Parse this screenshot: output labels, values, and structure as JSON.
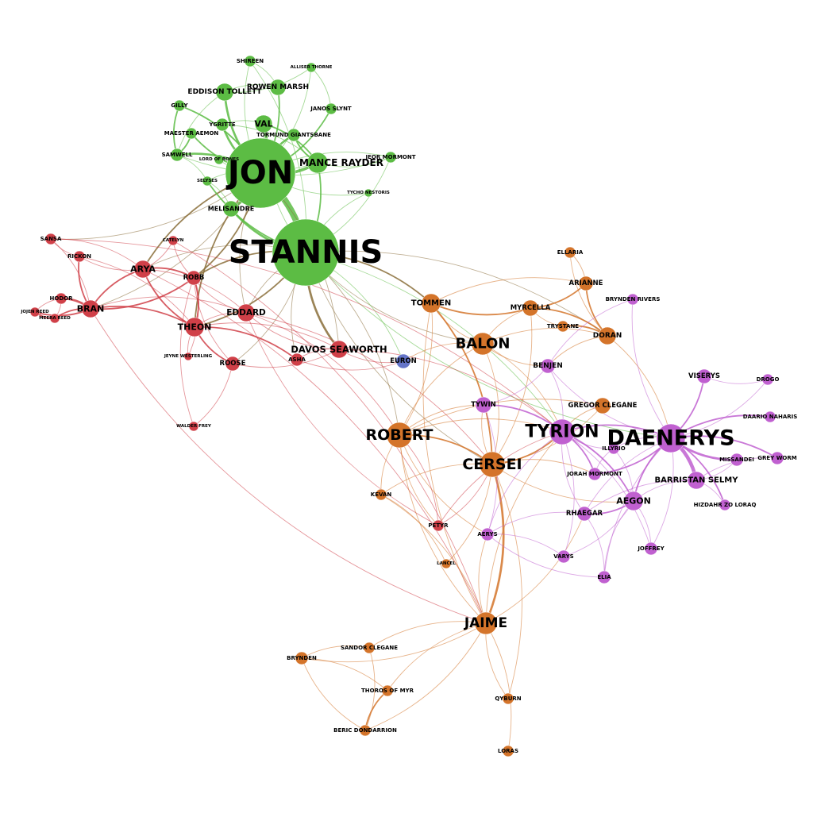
{
  "colors": {
    "north": "#d04048",
    "wall": "#5cbc44",
    "south": "#d4742a",
    "east": "#c060d0",
    "iron": "#6474c8",
    "mixed": "#8a6e3a"
  },
  "nodes": [
    {
      "id": "jon",
      "label": "JON",
      "group": "wall",
      "size": 44
    },
    {
      "id": "stannis",
      "label": "STANNIS",
      "group": "wall",
      "size": 42
    },
    {
      "id": "shireen",
      "label": "SHIREEN",
      "group": "wall",
      "size": 7
    },
    {
      "id": "alliser",
      "label": "ALLISER THORNE",
      "group": "wall",
      "size": 6
    },
    {
      "id": "rowen",
      "label": "ROWEN MARSH",
      "group": "wall",
      "size": 10
    },
    {
      "id": "eddison",
      "label": "EDDISON TOLLETT",
      "group": "wall",
      "size": 11
    },
    {
      "id": "gilly",
      "label": "GILLY",
      "group": "wall",
      "size": 7
    },
    {
      "id": "janos",
      "label": "JANOS SLYNT",
      "group": "wall",
      "size": 7
    },
    {
      "id": "ygritte",
      "label": "YGRITTE",
      "group": "wall",
      "size": 8
    },
    {
      "id": "val",
      "label": "VAL",
      "group": "wall",
      "size": 11
    },
    {
      "id": "aemon",
      "label": "MAESTER AEMON",
      "group": "wall",
      "size": 7
    },
    {
      "id": "tormund",
      "label": "TORMUND GIANTSBANE",
      "group": "wall",
      "size": 8
    },
    {
      "id": "samwell",
      "label": "SAMWELL",
      "group": "wall",
      "size": 8
    },
    {
      "id": "lordbones",
      "label": "LORD OF BONES",
      "group": "wall",
      "size": 6
    },
    {
      "id": "mance",
      "label": "MANCE RAYDER",
      "group": "wall",
      "size": 13
    },
    {
      "id": "jeor",
      "label": "JEOR MORMONT",
      "group": "wall",
      "size": 7
    },
    {
      "id": "selyses",
      "label": "SELYSES",
      "group": "wall",
      "size": 6
    },
    {
      "id": "tycho",
      "label": "TYCHO NESTORIS",
      "group": "wall",
      "size": 5
    },
    {
      "id": "melisandre",
      "label": "MELISANDRE",
      "group": "wall",
      "size": 10
    },
    {
      "id": "sansa",
      "label": "SANSA",
      "group": "north",
      "size": 7
    },
    {
      "id": "catelyn",
      "label": "CATELYN",
      "group": "north",
      "size": 6
    },
    {
      "id": "rickon",
      "label": "RICKON",
      "group": "north",
      "size": 7
    },
    {
      "id": "arya",
      "label": "ARYA",
      "group": "north",
      "size": 11
    },
    {
      "id": "robb",
      "label": "ROBB",
      "group": "north",
      "size": 9
    },
    {
      "id": "hodor",
      "label": "HODOR",
      "group": "north",
      "size": 7
    },
    {
      "id": "bran",
      "label": "BRAN",
      "group": "north",
      "size": 11
    },
    {
      "id": "jojen",
      "label": "JOJEN REED",
      "group": "north",
      "size": 6
    },
    {
      "id": "meera",
      "label": "MEERA REED",
      "group": "north",
      "size": 6
    },
    {
      "id": "eddard",
      "label": "EDDARD",
      "group": "north",
      "size": 11
    },
    {
      "id": "theon",
      "label": "THEON",
      "group": "north",
      "size": 12
    },
    {
      "id": "jeyne",
      "label": "JEYNE WESTERLING",
      "group": "north",
      "size": 5
    },
    {
      "id": "roose",
      "label": "ROOSE",
      "group": "north",
      "size": 9
    },
    {
      "id": "asha",
      "label": "ASHA",
      "group": "north",
      "size": 8
    },
    {
      "id": "davos",
      "label": "DAVOS SEAWORTH",
      "group": "north",
      "size": 11
    },
    {
      "id": "walder",
      "label": "WALDER FREY",
      "group": "north",
      "size": 6
    },
    {
      "id": "petyr",
      "label": "PETYR",
      "group": "north",
      "size": 7
    },
    {
      "id": "euron",
      "label": "EURON",
      "group": "iron",
      "size": 9
    },
    {
      "id": "ellaria",
      "label": "ELLARIA",
      "group": "south",
      "size": 7
    },
    {
      "id": "arianne",
      "label": "ARIANNE",
      "group": "south",
      "size": 9
    },
    {
      "id": "tommen",
      "label": "TOMMEN",
      "group": "south",
      "size": 12
    },
    {
      "id": "myrcella",
      "label": "MYRCELLA",
      "group": "south",
      "size": 10
    },
    {
      "id": "trystane",
      "label": "TRYSTANE",
      "group": "south",
      "size": 7
    },
    {
      "id": "doran",
      "label": "DORAN",
      "group": "south",
      "size": 11
    },
    {
      "id": "balon",
      "label": "BALON",
      "group": "south",
      "size": 14
    },
    {
      "id": "robert",
      "label": "ROBERT",
      "group": "south",
      "size": 16
    },
    {
      "id": "cersei",
      "label": "CERSEI",
      "group": "south",
      "size": 16
    },
    {
      "id": "gregor",
      "label": "GREGOR CLEGANE",
      "group": "south",
      "size": 10
    },
    {
      "id": "kevan",
      "label": "KEVAN",
      "group": "south",
      "size": 7
    },
    {
      "id": "lancel",
      "label": "LANCEL",
      "group": "south",
      "size": 6
    },
    {
      "id": "jaime",
      "label": "JAIME",
      "group": "south",
      "size": 14
    },
    {
      "id": "sandor",
      "label": "SANDOR CLEGANE",
      "group": "south",
      "size": 7
    },
    {
      "id": "brynden",
      "label": "BRYNDEN",
      "group": "south",
      "size": 8
    },
    {
      "id": "thoros",
      "label": "THOROS OF MYR",
      "group": "south",
      "size": 7
    },
    {
      "id": "beric",
      "label": "BERIC DONDARRION",
      "group": "south",
      "size": 7
    },
    {
      "id": "qyburn",
      "label": "QYBURN",
      "group": "south",
      "size": 7
    },
    {
      "id": "loras",
      "label": "LORAS",
      "group": "south",
      "size": 7
    },
    {
      "id": "tyrion",
      "label": "TYRION",
      "group": "east",
      "size": 16
    },
    {
      "id": "daenerys",
      "label": "DAENERYS",
      "group": "east",
      "size": 18
    },
    {
      "id": "brynden_rivers",
      "label": "BRYNDEN RIVERS",
      "group": "east",
      "size": 7
    },
    {
      "id": "benjen",
      "label": "BENJEN",
      "group": "east",
      "size": 9
    },
    {
      "id": "tywin",
      "label": "TYWIN",
      "group": "east",
      "size": 10
    },
    {
      "id": "viserys",
      "label": "VISERYS",
      "group": "east",
      "size": 9
    },
    {
      "id": "drogo",
      "label": "DROGO",
      "group": "east",
      "size": 7
    },
    {
      "id": "daario",
      "label": "DAARIO NAHARIS",
      "group": "east",
      "size": 7
    },
    {
      "id": "greyworm",
      "label": "GREY WORM",
      "group": "east",
      "size": 8
    },
    {
      "id": "missandei",
      "label": "MISSANDEI",
      "group": "east",
      "size": 8
    },
    {
      "id": "illyrio",
      "label": "ILLYRIO",
      "group": "east",
      "size": 7
    },
    {
      "id": "jorah",
      "label": "JORAH MORMONT",
      "group": "east",
      "size": 8
    },
    {
      "id": "barristan",
      "label": "BARRISTAN SELMY",
      "group": "east",
      "size": 11
    },
    {
      "id": "aegon",
      "label": "AEGON",
      "group": "east",
      "size": 12
    },
    {
      "id": "hizdahr",
      "label": "HIZDAHR ZO LORAQ",
      "group": "east",
      "size": 7
    },
    {
      "id": "rhaegar",
      "label": "RHAEGAR",
      "group": "east",
      "size": 9
    },
    {
      "id": "aerys",
      "label": "AERYS",
      "group": "east",
      "size": 8
    },
    {
      "id": "varys",
      "label": "VARYS",
      "group": "east",
      "size": 8
    },
    {
      "id": "joffrey",
      "label": "JOFFREY",
      "group": "east",
      "size": 8
    },
    {
      "id": "elia",
      "label": "ELIA",
      "group": "east",
      "size": 8
    }
  ],
  "edges": [
    [
      "jon",
      "stannis",
      9
    ],
    [
      "jon",
      "mance",
      4
    ],
    [
      "jon",
      "melisandre",
      4
    ],
    [
      "jon",
      "val",
      4
    ],
    [
      "jon",
      "eddison",
      3
    ],
    [
      "jon",
      "samwell",
      3
    ],
    [
      "jon",
      "ygritte",
      3
    ],
    [
      "jon",
      "rowen",
      2
    ],
    [
      "jon",
      "tormund",
      3
    ],
    [
      "jon",
      "gilly",
      2
    ],
    [
      "jon",
      "aemon",
      2
    ],
    [
      "jon",
      "janos",
      2
    ],
    [
      "jon",
      "shireen",
      1
    ],
    [
      "jon",
      "alliser",
      1
    ],
    [
      "jon",
      "jeor",
      1
    ],
    [
      "jon",
      "selyses",
      1
    ],
    [
      "jon",
      "lordbones",
      1
    ],
    [
      "jon",
      "arya",
      2
    ],
    [
      "jon",
      "robb",
      2
    ],
    [
      "jon",
      "theon",
      2
    ],
    [
      "jon",
      "bran",
      1
    ],
    [
      "jon",
      "eddard",
      1
    ],
    [
      "jon",
      "davos",
      1
    ],
    [
      "jon",
      "tycho",
      1
    ],
    [
      "jon",
      "sansa",
      1
    ],
    [
      "stannis",
      "davos",
      3
    ],
    [
      "stannis",
      "melisandre",
      3
    ],
    [
      "stannis",
      "mance",
      2
    ],
    [
      "stannis",
      "selyses",
      2
    ],
    [
      "stannis",
      "shireen",
      1
    ],
    [
      "stannis",
      "val",
      1
    ],
    [
      "stannis",
      "robb",
      2
    ],
    [
      "stannis",
      "theon",
      2
    ],
    [
      "stannis",
      "eddard",
      1
    ],
    [
      "stannis",
      "tommen",
      2
    ],
    [
      "stannis",
      "balon",
      1
    ],
    [
      "stannis",
      "robert",
      1
    ],
    [
      "stannis",
      "cersei",
      1
    ],
    [
      "stannis",
      "tycho",
      1
    ],
    [
      "stannis",
      "asha",
      1
    ],
    [
      "stannis",
      "roose",
      1
    ],
    [
      "stannis",
      "daenerys",
      1
    ],
    [
      "stannis",
      "doran",
      1
    ],
    [
      "stannis",
      "arya",
      1
    ],
    [
      "stannis",
      "tyrion",
      1
    ],
    [
      "stannis",
      "jeor",
      1
    ],
    [
      "stannis",
      "euron",
      1
    ],
    [
      "mance",
      "val",
      2
    ],
    [
      "mance",
      "tormund",
      2
    ],
    [
      "mance",
      "ygritte",
      1
    ],
    [
      "mance",
      "lordbones",
      1
    ],
    [
      "mance",
      "jeor",
      1
    ],
    [
      "eddison",
      "rowen",
      1
    ],
    [
      "eddison",
      "alliser",
      1
    ],
    [
      "samwell",
      "gilly",
      2
    ],
    [
      "samwell",
      "aemon",
      2
    ],
    [
      "samwell",
      "eddison",
      1
    ],
    [
      "samwell",
      "jeor",
      1
    ],
    [
      "samwell",
      "selyses",
      1
    ],
    [
      "melisandre",
      "selyses",
      1
    ],
    [
      "shireen",
      "rowen",
      1
    ],
    [
      "janos",
      "alliser",
      1
    ],
    [
      "ygritte",
      "val",
      1
    ],
    [
      "arya",
      "bran",
      2
    ],
    [
      "arya",
      "robb",
      2
    ],
    [
      "arya",
      "sansa",
      1
    ],
    [
      "arya",
      "rickon",
      1
    ],
    [
      "arya",
      "theon",
      2
    ],
    [
      "arya",
      "eddard",
      1
    ],
    [
      "arya",
      "catelyn",
      1
    ],
    [
      "arya",
      "jaime",
      1
    ],
    [
      "bran",
      "hodor",
      3
    ],
    [
      "bran",
      "jojen",
      2
    ],
    [
      "bran",
      "meera",
      2
    ],
    [
      "bran",
      "rickon",
      2
    ],
    [
      "bran",
      "robb",
      2
    ],
    [
      "bran",
      "theon",
      2
    ],
    [
      "bran",
      "sansa",
      1
    ],
    [
      "bran",
      "eddard",
      1
    ],
    [
      "hodor",
      "jojen",
      1
    ],
    [
      "hodor",
      "meera",
      1
    ],
    [
      "jojen",
      "meera",
      2
    ],
    [
      "robb",
      "theon",
      2
    ],
    [
      "robb",
      "eddard",
      1
    ],
    [
      "robb",
      "catelyn",
      1
    ],
    [
      "robb",
      "roose",
      1
    ],
    [
      "robb",
      "jeyne",
      1
    ],
    [
      "robb",
      "walder",
      1
    ],
    [
      "theon",
      "asha",
      2
    ],
    [
      "theon",
      "roose",
      2
    ],
    [
      "theon",
      "eddard",
      1
    ],
    [
      "theon",
      "jeyne",
      1
    ],
    [
      "theon",
      "davos",
      1
    ],
    [
      "theon",
      "rickon",
      1
    ],
    [
      "eddard",
      "robert",
      1
    ],
    [
      "eddard",
      "davos",
      1
    ],
    [
      "eddard",
      "cersei",
      1
    ],
    [
      "davos",
      "asha",
      1
    ],
    [
      "davos",
      "roose",
      1
    ],
    [
      "davos",
      "euron",
      1
    ],
    [
      "davos",
      "tyrion",
      1
    ],
    [
      "asha",
      "euron",
      1
    ],
    [
      "roose",
      "walder",
      1
    ],
    [
      "sansa",
      "rickon",
      1
    ],
    [
      "sansa",
      "tyrion",
      1
    ],
    [
      "bran",
      "jaime",
      1
    ],
    [
      "catelyn",
      "jaime",
      1
    ],
    [
      "petyr",
      "cersei",
      1
    ],
    [
      "petyr",
      "tyrion",
      1
    ],
    [
      "petyr",
      "robert",
      1
    ],
    [
      "petyr",
      "eddard",
      1
    ],
    [
      "tommen",
      "myrcella",
      2
    ],
    [
      "tommen",
      "cersei",
      2
    ],
    [
      "tommen",
      "balon",
      1
    ],
    [
      "tommen",
      "robert",
      1
    ],
    [
      "tommen",
      "jaime",
      1
    ],
    [
      "tommen",
      "arianne",
      1
    ],
    [
      "myrcella",
      "arianne",
      2
    ],
    [
      "myrcella",
      "doran",
      2
    ],
    [
      "myrcella",
      "trystane",
      1
    ],
    [
      "myrcella",
      "cersei",
      1
    ],
    [
      "myrcella",
      "balon",
      1
    ],
    [
      "doran",
      "arianne",
      2
    ],
    [
      "doran",
      "trystane",
      2
    ],
    [
      "doran",
      "ellaria",
      1
    ],
    [
      "doran",
      "balon",
      1
    ],
    [
      "doran",
      "daenerys",
      1
    ],
    [
      "doran",
      "benjen",
      1
    ],
    [
      "ellaria",
      "arianne",
      1
    ],
    [
      "balon",
      "robert",
      1
    ],
    [
      "balon",
      "cersei",
      1
    ],
    [
      "balon",
      "euron",
      1
    ],
    [
      "balon",
      "tyrion",
      1
    ],
    [
      "balon",
      "benjen",
      1
    ],
    [
      "robert",
      "cersei",
      2
    ],
    [
      "robert",
      "jaime",
      1
    ],
    [
      "robert",
      "tyrion",
      1
    ],
    [
      "robert",
      "kevan",
      1
    ],
    [
      "robert",
      "tywin",
      1
    ],
    [
      "robert",
      "aerys",
      1
    ],
    [
      "robert",
      "gregor",
      1
    ],
    [
      "robert",
      "petyr",
      1
    ],
    [
      "cersei",
      "jaime",
      3
    ],
    [
      "cersei",
      "tyrion",
      2
    ],
    [
      "cersei",
      "tywin",
      1
    ],
    [
      "cersei",
      "kevan",
      1
    ],
    [
      "cersei",
      "lancel",
      1
    ],
    [
      "cersei",
      "gregor",
      1
    ],
    [
      "cersei",
      "jorah",
      1
    ],
    [
      "cersei",
      "aegon",
      1
    ],
    [
      "cersei",
      "qyburn",
      1
    ],
    [
      "jaime",
      "sandor",
      1
    ],
    [
      "jaime",
      "brynden",
      1
    ],
    [
      "jaime",
      "thoros",
      1
    ],
    [
      "jaime",
      "beric",
      1
    ],
    [
      "jaime",
      "qyburn",
      1
    ],
    [
      "jaime",
      "loras",
      1
    ],
    [
      "jaime",
      "kevan",
      1
    ],
    [
      "jaime",
      "tyrion",
      1
    ],
    [
      "jaime",
      "rhaegar",
      1
    ],
    [
      "jaime",
      "aerys",
      1
    ],
    [
      "sandor",
      "brynden",
      1
    ],
    [
      "sandor",
      "beric",
      1
    ],
    [
      "thoros",
      "beric",
      2
    ],
    [
      "brynden",
      "thoros",
      1
    ],
    [
      "brynden",
      "beric",
      1
    ],
    [
      "kevan",
      "lancel",
      1
    ],
    [
      "gregor",
      "tyrion",
      1
    ],
    [
      "tyrion",
      "daenerys",
      2
    ],
    [
      "tyrion",
      "tywin",
      2
    ],
    [
      "tyrion",
      "jorah",
      2
    ],
    [
      "tyrion",
      "illyrio",
      1
    ],
    [
      "tyrion",
      "aegon",
      2
    ],
    [
      "tyrion",
      "benjen",
      1
    ],
    [
      "tyrion",
      "varys",
      1
    ],
    [
      "tyrion",
      "rhaegar",
      1
    ],
    [
      "tyrion",
      "joffrey",
      1
    ],
    [
      "tyrion",
      "aerys",
      1
    ],
    [
      "daenerys",
      "barristan",
      5
    ],
    [
      "daenerys",
      "viserys",
      2
    ],
    [
      "daenerys",
      "daario",
      2
    ],
    [
      "daenerys",
      "missandei",
      3
    ],
    [
      "daenerys",
      "greyworm",
      2
    ],
    [
      "daenerys",
      "drogo",
      1
    ],
    [
      "daenerys",
      "jorah",
      2
    ],
    [
      "daenerys",
      "aegon",
      2
    ],
    [
      "daenerys",
      "hizdahr",
      2
    ],
    [
      "daenerys",
      "rhaegar",
      1
    ],
    [
      "daenerys",
      "benjen",
      1
    ],
    [
      "daenerys",
      "illyrio",
      1
    ],
    [
      "daenerys",
      "brynden_rivers",
      1
    ],
    [
      "daenerys",
      "elia",
      1
    ],
    [
      "daenerys",
      "joffrey",
      1
    ],
    [
      "barristan",
      "missandei",
      1
    ],
    [
      "barristan",
      "greyworm",
      1
    ],
    [
      "barristan",
      "aegon",
      1
    ],
    [
      "barristan",
      "hizdahr",
      1
    ],
    [
      "barristan",
      "rhaegar",
      1
    ],
    [
      "aegon",
      "rhaegar",
      2
    ],
    [
      "aegon",
      "elia",
      1
    ],
    [
      "aegon",
      "joffrey",
      1
    ],
    [
      "aegon",
      "illyrio",
      1
    ],
    [
      "aegon",
      "varys",
      1
    ],
    [
      "rhaegar",
      "aerys",
      1
    ],
    [
      "rhaegar",
      "elia",
      1
    ],
    [
      "varys",
      "aerys",
      1
    ],
    [
      "tywin",
      "aerys",
      1
    ],
    [
      "tywin",
      "benjen",
      1
    ],
    [
      "benjen",
      "brynden_rivers",
      1
    ],
    [
      "viserys",
      "drogo",
      1
    ],
    [
      "jorah",
      "illyrio",
      1
    ],
    [
      "aerys",
      "elia",
      1
    ]
  ]
}
